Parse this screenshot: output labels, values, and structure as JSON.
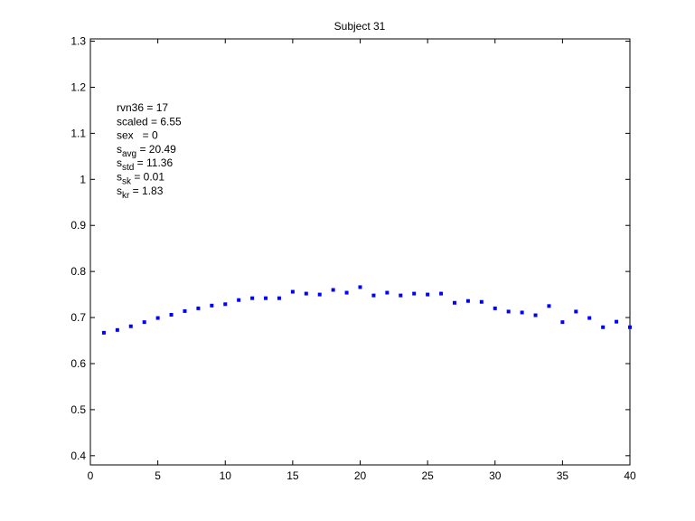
{
  "chart_data": {
    "type": "scatter",
    "title": "Subject 31",
    "xlabel": "",
    "ylabel": "",
    "xlim": [
      0,
      40
    ],
    "ylim": [
      0.38,
      1.305
    ],
    "xticks": [
      "0",
      "5",
      "10",
      "15",
      "20",
      "25",
      "30",
      "35",
      "40"
    ],
    "yticks": [
      "0.4",
      "0.5",
      "0.6",
      "0.7",
      "0.8",
      "0.9",
      "1",
      "1.1",
      "1.2",
      "1.3"
    ],
    "grid": false,
    "marker_color": "#0000ff",
    "points": [
      {
        "x": 1,
        "y": 0.667
      },
      {
        "x": 2,
        "y": 0.673
      },
      {
        "x": 3,
        "y": 0.681
      },
      {
        "x": 4,
        "y": 0.69
      },
      {
        "x": 5,
        "y": 0.699
      },
      {
        "x": 6,
        "y": 0.706
      },
      {
        "x": 7,
        "y": 0.714
      },
      {
        "x": 8,
        "y": 0.72
      },
      {
        "x": 9,
        "y": 0.726
      },
      {
        "x": 10,
        "y": 0.729
      },
      {
        "x": 11,
        "y": 0.738
      },
      {
        "x": 12,
        "y": 0.742
      },
      {
        "x": 13,
        "y": 0.742
      },
      {
        "x": 14,
        "y": 0.742
      },
      {
        "x": 15,
        "y": 0.756
      },
      {
        "x": 16,
        "y": 0.752
      },
      {
        "x": 17,
        "y": 0.75
      },
      {
        "x": 18,
        "y": 0.76
      },
      {
        "x": 19,
        "y": 0.754
      },
      {
        "x": 20,
        "y": 0.766
      },
      {
        "x": 21,
        "y": 0.748
      },
      {
        "x": 22,
        "y": 0.754
      },
      {
        "x": 23,
        "y": 0.748
      },
      {
        "x": 24,
        "y": 0.752
      },
      {
        "x": 25,
        "y": 0.75
      },
      {
        "x": 26,
        "y": 0.752
      },
      {
        "x": 27,
        "y": 0.732
      },
      {
        "x": 28,
        "y": 0.736
      },
      {
        "x": 29,
        "y": 0.734
      },
      {
        "x": 30,
        "y": 0.72
      },
      {
        "x": 31,
        "y": 0.713
      },
      {
        "x": 32,
        "y": 0.711
      },
      {
        "x": 33,
        "y": 0.705
      },
      {
        "x": 34,
        "y": 0.725
      },
      {
        "x": 35,
        "y": 0.69
      },
      {
        "x": 36,
        "y": 0.713
      },
      {
        "x": 37,
        "y": 0.699
      },
      {
        "x": 38,
        "y": 0.679
      },
      {
        "x": 39,
        "y": 0.691
      },
      {
        "x": 40,
        "y": 0.679
      }
    ],
    "annotations": [
      {
        "base": "rvn36 = 17",
        "sub": "",
        "rest": ""
      },
      {
        "base": "scaled = 6.55",
        "sub": "",
        "rest": ""
      },
      {
        "base": "sex   = 0",
        "sub": "",
        "rest": ""
      },
      {
        "base": "s",
        "sub": "avg",
        "rest": " = 20.49"
      },
      {
        "base": "s",
        "sub": "std",
        "rest": " = 11.36"
      },
      {
        "base": "s",
        "sub": "sk",
        "rest": " = 0.01"
      },
      {
        "base": "s",
        "sub": "kr",
        "rest": " = 1.83"
      }
    ]
  }
}
